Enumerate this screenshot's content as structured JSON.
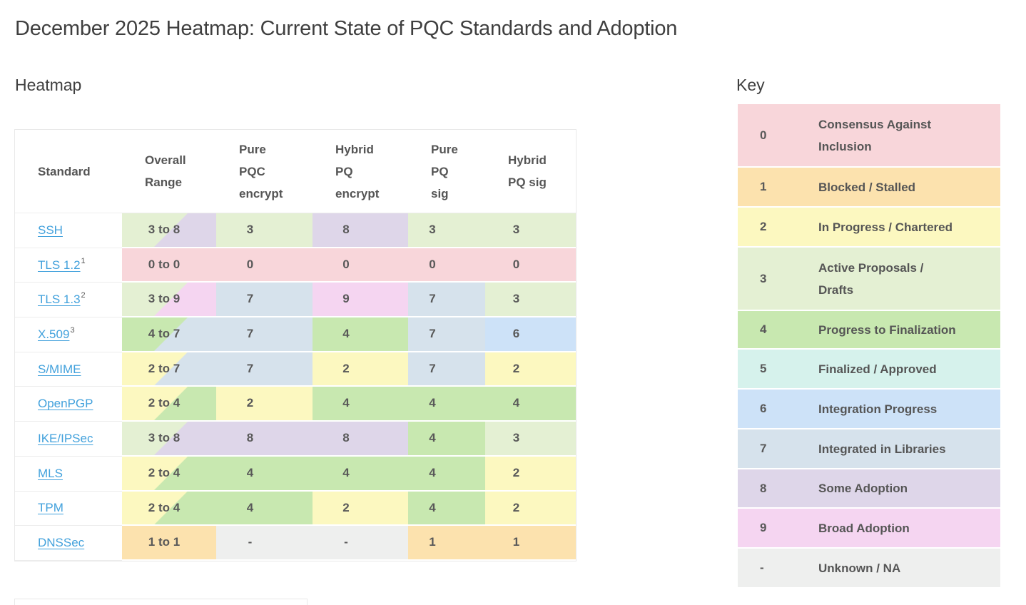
{
  "page": {
    "title": "December 2025 Heatmap: Current State of PQC Standards and Adoption"
  },
  "heatmap": {
    "section_title": "Heatmap",
    "columns": {
      "standard": "Standard",
      "overall_range": "Overall\nRange",
      "pure_pqc_encrypt": "Pure\nPQC\nencrypt",
      "hybrid_pq_encrypt": "Hybrid\nPQ\nencrypt",
      "pure_pq_sig": "Pure\nPQ\nsig",
      "hybrid_pq_sig": "Hybrid\nPQ sig"
    },
    "rows": [
      {
        "standard": "SSH",
        "sup": "",
        "range": {
          "text": "3 to 8",
          "from": "3",
          "to": "8"
        },
        "values": [
          {
            "text": "3",
            "level": "3"
          },
          {
            "text": "8",
            "level": "8"
          },
          {
            "text": "3",
            "level": "3"
          },
          {
            "text": "3",
            "level": "3"
          }
        ]
      },
      {
        "standard": "TLS 1.2",
        "sup": "1",
        "range": {
          "text": "0 to 0",
          "from": "0",
          "to": "0"
        },
        "values": [
          {
            "text": "0",
            "level": "0"
          },
          {
            "text": "0",
            "level": "0"
          },
          {
            "text": "0",
            "level": "0"
          },
          {
            "text": "0",
            "level": "0"
          }
        ]
      },
      {
        "standard": "TLS 1.3",
        "sup": "2",
        "range": {
          "text": "3 to 9",
          "from": "3",
          "to": "9"
        },
        "values": [
          {
            "text": "7",
            "level": "7"
          },
          {
            "text": "9",
            "level": "9"
          },
          {
            "text": "7",
            "level": "7"
          },
          {
            "text": "3",
            "level": "3"
          }
        ]
      },
      {
        "standard": "X.509",
        "sup": "3",
        "range": {
          "text": "4 to 7",
          "from": "4",
          "to": "7"
        },
        "values": [
          {
            "text": "7",
            "level": "7"
          },
          {
            "text": "4",
            "level": "4"
          },
          {
            "text": "7",
            "level": "7"
          },
          {
            "text": "6",
            "level": "6"
          }
        ]
      },
      {
        "standard": "S/MIME",
        "sup": "",
        "range": {
          "text": "2 to 7",
          "from": "2",
          "to": "7"
        },
        "values": [
          {
            "text": "7",
            "level": "7"
          },
          {
            "text": "2",
            "level": "2"
          },
          {
            "text": "7",
            "level": "7"
          },
          {
            "text": "2",
            "level": "2"
          }
        ]
      },
      {
        "standard": "OpenPGP",
        "sup": "",
        "range": {
          "text": "2 to 4",
          "from": "2",
          "to": "4"
        },
        "values": [
          {
            "text": "2",
            "level": "2"
          },
          {
            "text": "4",
            "level": "4"
          },
          {
            "text": "4",
            "level": "4"
          },
          {
            "text": "4",
            "level": "4"
          }
        ]
      },
      {
        "standard": "IKE/IPSec",
        "sup": "",
        "range": {
          "text": "3 to 8",
          "from": "3",
          "to": "8"
        },
        "values": [
          {
            "text": "8",
            "level": "8"
          },
          {
            "text": "8",
            "level": "8"
          },
          {
            "text": "4",
            "level": "4"
          },
          {
            "text": "3",
            "level": "3"
          }
        ]
      },
      {
        "standard": "MLS",
        "sup": "",
        "range": {
          "text": "2 to 4",
          "from": "2",
          "to": "4"
        },
        "values": [
          {
            "text": "4",
            "level": "4"
          },
          {
            "text": "4",
            "level": "4"
          },
          {
            "text": "4",
            "level": "4"
          },
          {
            "text": "2",
            "level": "2"
          }
        ]
      },
      {
        "standard": "TPM",
        "sup": "",
        "range": {
          "text": "2 to 4",
          "from": "2",
          "to": "4"
        },
        "values": [
          {
            "text": "4",
            "level": "4"
          },
          {
            "text": "2",
            "level": "2"
          },
          {
            "text": "4",
            "level": "4"
          },
          {
            "text": "2",
            "level": "2"
          }
        ]
      },
      {
        "standard": "DNSSec",
        "sup": "",
        "range": {
          "text": "1 to 1",
          "from": "1",
          "to": "1"
        },
        "values": [
          {
            "text": "-",
            "level": "na"
          },
          {
            "text": "-",
            "level": "na"
          },
          {
            "text": "1",
            "level": "1"
          },
          {
            "text": "1",
            "level": "1"
          }
        ]
      }
    ]
  },
  "key": {
    "section_title": "Key",
    "colors": {
      "0": "#f8d6da",
      "1": "#fce2ae",
      "2": "#fcf8c0",
      "3": "#e4f0d3",
      "4": "#c8e8b0",
      "5": "#d6f2ec",
      "6": "#cde2f8",
      "7": "#d6e2ec",
      "8": "#ded6e9",
      "9": "#f5d5f1",
      "na": "#eeefee"
    },
    "entries": [
      {
        "value": "0",
        "level": "0",
        "label": "Consensus Against\nInclusion"
      },
      {
        "value": "1",
        "level": "1",
        "label": "Blocked / Stalled"
      },
      {
        "value": "2",
        "level": "2",
        "label": "In Progress / Chartered"
      },
      {
        "value": "3",
        "level": "3",
        "label": "Active Proposals /\nDrafts"
      },
      {
        "value": "4",
        "level": "4",
        "label": "Progress to Finalization"
      },
      {
        "value": "5",
        "level": "5",
        "label": "Finalized / Approved"
      },
      {
        "value": "6",
        "level": "6",
        "label": "Integration Progress"
      },
      {
        "value": "7",
        "level": "7",
        "label": "Integrated in Libraries"
      },
      {
        "value": "8",
        "level": "8",
        "label": "Some Adoption"
      },
      {
        "value": "9",
        "level": "9",
        "label": "Broad Adoption"
      },
      {
        "value": "-",
        "level": "na",
        "label": "Unknown / NA"
      }
    ]
  },
  "chart_data": {
    "type": "heatmap",
    "title": "December 2025 Heatmap: Current State of PQC Standards and Adoption",
    "columns": [
      "Overall Range",
      "Pure PQC encrypt",
      "Hybrid PQ encrypt",
      "Pure PQ sig",
      "Hybrid PQ sig"
    ],
    "rows": [
      "SSH",
      "TLS 1.2",
      "TLS 1.3",
      "X.509",
      "S/MIME",
      "OpenPGP",
      "IKE/IPSec",
      "MLS",
      "TPM",
      "DNSSec"
    ],
    "values": [
      [
        "3 to 8",
        3,
        8,
        3,
        3
      ],
      [
        "0 to 0",
        0,
        0,
        0,
        0
      ],
      [
        "3 to 9",
        7,
        9,
        7,
        3
      ],
      [
        "4 to 7",
        7,
        4,
        7,
        6
      ],
      [
        "2 to 7",
        7,
        2,
        7,
        2
      ],
      [
        "2 to 4",
        2,
        4,
        4,
        4
      ],
      [
        "3 to 8",
        8,
        8,
        4,
        3
      ],
      [
        "2 to 4",
        4,
        4,
        4,
        2
      ],
      [
        "2 to 4",
        4,
        2,
        4,
        2
      ],
      [
        "1 to 1",
        "-",
        "-",
        1,
        1
      ]
    ],
    "scale": {
      "0": "Consensus Against Inclusion",
      "1": "Blocked / Stalled",
      "2": "In Progress / Chartered",
      "3": "Active Proposals / Drafts",
      "4": "Progress to Finalization",
      "5": "Finalized / Approved",
      "6": "Integration Progress",
      "7": "Integrated in Libraries",
      "8": "Some Adoption",
      "9": "Broad Adoption",
      "-": "Unknown / NA"
    },
    "legend_position": "right"
  }
}
